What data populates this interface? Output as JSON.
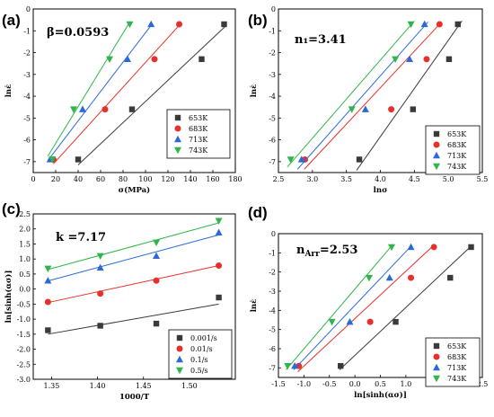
{
  "chart_data": [
    {
      "type": "scatter",
      "panel_label": "(a)",
      "annotation": "β=0.0593",
      "xlabel": "σ(MPa)",
      "ylabel": "lnε̇",
      "xlim": [
        0,
        180
      ],
      "ylim": [
        -7.5,
        0
      ],
      "xticks": [
        "0",
        "20",
        "40",
        "60",
        "80",
        "100",
        "120",
        "140",
        "160",
        "180"
      ],
      "yticks": [
        "0",
        "-1",
        "-2",
        "-3",
        "-4",
        "-5",
        "-6",
        "-7"
      ],
      "xtick_values": [
        0,
        20,
        40,
        60,
        80,
        100,
        120,
        140,
        160,
        180
      ],
      "ytick_values": [
        0,
        -1,
        -2,
        -3,
        -4,
        -5,
        -6,
        -7
      ],
      "legend_position": "bottom-right",
      "series": [
        {
          "name": "653K",
          "color": "#3a3a3a",
          "marker": "square",
          "x": [
            40,
            88,
            150,
            170
          ],
          "y": [
            -6.9,
            -4.6,
            -2.3,
            -0.7
          ],
          "fit": [
            [
              40,
              -7.15
            ],
            [
              172,
              -0.75
            ]
          ]
        },
        {
          "name": "683K",
          "color": "#e8302a",
          "marker": "circle",
          "x": [
            18,
            64,
            108,
            130
          ],
          "y": [
            -6.9,
            -4.6,
            -2.3,
            -0.7
          ],
          "fit": [
            [
              18,
              -7.1
            ],
            [
              130,
              -0.75
            ]
          ]
        },
        {
          "name": "713K",
          "color": "#2a6ad8",
          "marker": "triangle",
          "x": [
            15,
            44,
            84,
            105
          ],
          "y": [
            -6.9,
            -4.6,
            -2.3,
            -0.7
          ],
          "fit": [
            [
              13,
              -6.95
            ],
            [
              105,
              -0.75
            ]
          ]
        },
        {
          "name": "743K",
          "color": "#2fb54a",
          "marker": "tri-down",
          "x": [
            17,
            36,
            68,
            86
          ],
          "y": [
            -6.9,
            -4.6,
            -2.3,
            -0.7
          ],
          "fit": [
            [
              13,
              -6.75
            ],
            [
              86,
              -0.6
            ]
          ]
        }
      ]
    },
    {
      "type": "scatter",
      "panel_label": "(b)",
      "annotation": "n₁=3.41",
      "xlabel": "lnσ",
      "ylabel": "lnε̇",
      "xlim": [
        2.5,
        5.5
      ],
      "ylim": [
        -7.5,
        0
      ],
      "xticks": [
        "2.5",
        "3.0",
        "3.5",
        "4.0",
        "4.5",
        "5.0",
        "5.5"
      ],
      "yticks": [
        "0",
        "-1",
        "-2",
        "-3",
        "-4",
        "-5",
        "-6",
        "-7"
      ],
      "xtick_values": [
        2.5,
        3.0,
        3.5,
        4.0,
        4.5,
        5.0,
        5.5
      ],
      "ytick_values": [
        0,
        -1,
        -2,
        -3,
        -4,
        -5,
        -6,
        -7
      ],
      "legend_position": "bottom-right",
      "series": [
        {
          "name": "653K",
          "color": "#3a3a3a",
          "marker": "square",
          "x": [
            3.69,
            4.48,
            5.01,
            5.14
          ],
          "y": [
            -6.9,
            -4.6,
            -2.3,
            -0.7
          ],
          "fit": [
            [
              3.65,
              -7.4
            ],
            [
              5.2,
              -0.55
            ]
          ]
        },
        {
          "name": "683K",
          "color": "#e8302a",
          "marker": "circle",
          "x": [
            2.89,
            4.16,
            4.68,
            4.87
          ],
          "y": [
            -6.9,
            -4.6,
            -2.3,
            -0.7
          ],
          "fit": [
            [
              2.88,
              -7.35
            ],
            [
              4.9,
              -0.6
            ]
          ]
        },
        {
          "name": "713K",
          "color": "#2a6ad8",
          "marker": "triangle",
          "x": [
            2.84,
            3.78,
            4.43,
            4.65
          ],
          "y": [
            -6.9,
            -4.6,
            -2.3,
            -0.7
          ],
          "fit": [
            [
              2.78,
              -7.35
            ],
            [
              4.7,
              -0.6
            ]
          ]
        },
        {
          "name": "743K",
          "color": "#2fb54a",
          "marker": "tri-down",
          "x": [
            2.68,
            3.58,
            4.22,
            4.45
          ],
          "y": [
            -6.9,
            -4.6,
            -2.3,
            -0.7
          ],
          "fit": [
            [
              2.63,
              -7.25
            ],
            [
              4.5,
              -0.55
            ]
          ]
        }
      ]
    },
    {
      "type": "scatter",
      "panel_label": "(c)",
      "annotation": "k =7.17",
      "xlabel": "1000/T",
      "ylabel": "ln[sinh(ασ)]",
      "xlim": [
        1.33,
        1.55
      ],
      "ylim": [
        -3.0,
        2.5
      ],
      "xticks": [
        "1.35",
        "1.40",
        "1.45",
        "1.50"
      ],
      "yticks": [
        "2.5",
        "2.0",
        "1.5",
        "1.0",
        "0.5",
        "0.0",
        "-0.5",
        "-1.0",
        "-1.5",
        "-2.0",
        "-2.5",
        "-3.0"
      ],
      "xtick_values": [
        1.35,
        1.4,
        1.45,
        1.5
      ],
      "ytick_values": [
        2.5,
        2.0,
        1.5,
        1.0,
        0.5,
        0.0,
        -0.5,
        -1.0,
        -1.5,
        -2.0,
        -2.5,
        -3.0
      ],
      "legend_position": "bottom-right",
      "series": [
        {
          "name": "0.001/s",
          "color": "#3a3a3a",
          "marker": "square",
          "x": [
            1.346,
            1.403,
            1.464,
            1.532
          ],
          "y": [
            -1.37,
            -1.22,
            -1.15,
            -0.28
          ],
          "fit": [
            [
              1.346,
              -1.5
            ],
            [
              1.532,
              -0.5
            ]
          ]
        },
        {
          "name": "0.01/s",
          "color": "#e8302a",
          "marker": "circle",
          "x": [
            1.346,
            1.403,
            1.464,
            1.532
          ],
          "y": [
            -0.43,
            -0.15,
            0.28,
            0.78
          ],
          "fit": [
            [
              1.346,
              -0.45
            ],
            [
              1.532,
              0.78
            ]
          ]
        },
        {
          "name": "0.1/s",
          "color": "#2a6ad8",
          "marker": "triangle",
          "x": [
            1.346,
            1.403,
            1.464,
            1.532
          ],
          "y": [
            0.28,
            0.71,
            1.1,
            1.88
          ],
          "fit": [
            [
              1.346,
              0.27
            ],
            [
              1.532,
              1.8
            ]
          ]
        },
        {
          "name": "0.5/s",
          "color": "#2fb54a",
          "marker": "tri-down",
          "x": [
            1.346,
            1.403,
            1.464,
            1.532
          ],
          "y": [
            0.68,
            1.1,
            1.55,
            2.27
          ],
          "fit": [
            [
              1.346,
              0.65
            ],
            [
              1.532,
              2.2
            ]
          ]
        }
      ]
    },
    {
      "type": "scatter",
      "panel_label": "(d)",
      "annotation": "nArr=2.53",
      "annotation_main": "n",
      "annotation_sub": "Arr",
      "annotation_value": "=2.53",
      "xlabel": "ln[sinh(ασ)]",
      "ylabel": "lnε̇",
      "xlim": [
        -1.5,
        2.5
      ],
      "ylim": [
        -7.5,
        0
      ],
      "xticks": [
        "-1.5",
        "-1.0",
        "-0.5",
        "0.0",
        "0.5",
        "1.0",
        "1.5",
        "2.0",
        "2.5"
      ],
      "yticks": [
        "0",
        "-1",
        "-2",
        "-3",
        "-4",
        "-5",
        "-6",
        "-7"
      ],
      "xtick_values": [
        -1.5,
        -1.0,
        -0.5,
        0.0,
        0.5,
        1.0,
        1.5,
        2.0,
        2.5
      ],
      "ytick_values": [
        0,
        -1,
        -2,
        -3,
        -4,
        -5,
        -6,
        -7
      ],
      "legend_position": "bottom-right",
      "series": [
        {
          "name": "653K",
          "color": "#3a3a3a",
          "marker": "square",
          "x": [
            -0.28,
            0.8,
            1.87,
            2.28
          ],
          "y": [
            -6.9,
            -4.6,
            -2.3,
            -0.7
          ],
          "fit": [
            [
              -0.3,
              -7.1
            ],
            [
              2.28,
              -0.65
            ]
          ]
        },
        {
          "name": "683K",
          "color": "#e8302a",
          "marker": "circle",
          "x": [
            -1.1,
            0.3,
            1.1,
            1.55
          ],
          "y": [
            -6.9,
            -4.6,
            -2.3,
            -0.7
          ],
          "fit": [
            [
              -1.12,
              -7.2
            ],
            [
              1.55,
              -0.6
            ]
          ]
        },
        {
          "name": "713K",
          "color": "#2a6ad8",
          "marker": "triangle",
          "x": [
            -1.18,
            -0.1,
            0.68,
            1.1
          ],
          "y": [
            -6.9,
            -4.6,
            -2.3,
            -0.7
          ],
          "fit": [
            [
              -1.2,
              -7.1
            ],
            [
              1.12,
              -0.6
            ]
          ]
        },
        {
          "name": "743K",
          "color": "#2fb54a",
          "marker": "tri-down",
          "x": [
            -1.32,
            -0.45,
            0.28,
            0.72
          ],
          "y": [
            -6.9,
            -4.6,
            -2.3,
            -0.7
          ],
          "fit": [
            [
              -1.35,
              -7.1
            ],
            [
              0.75,
              -0.55
            ]
          ]
        }
      ]
    }
  ]
}
